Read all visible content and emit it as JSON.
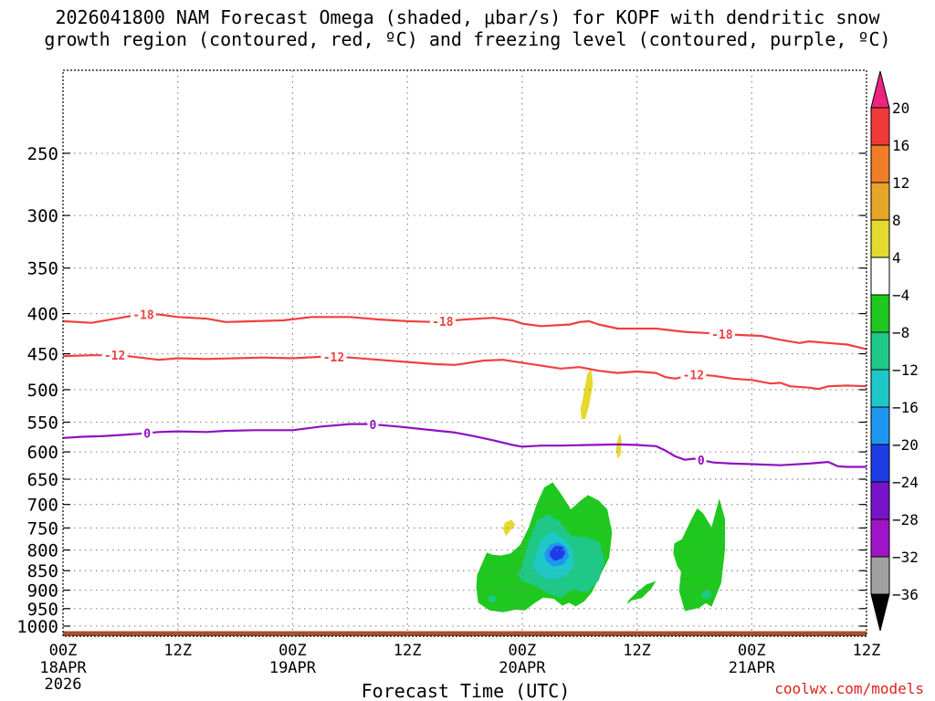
{
  "title": {
    "line1": "2026041800 NAM Forecast Omega (shaded, μbar/s) for KOPF with dendritic snow",
    "line2": "growth region (contoured, red, ºC) and freezing level (contoured, purple, ºC)"
  },
  "credit": "coolwx.com/models",
  "chart_data": {
    "type": "time-height cross section",
    "xlabel": "Forecast Time (UTC)",
    "x_range_hours": [
      0,
      84
    ],
    "x_ticks": [
      {
        "hour": 0,
        "label": "00Z",
        "sub1": "18APR",
        "sub2": "2026"
      },
      {
        "hour": 12,
        "label": "12Z",
        "sub1": "",
        "sub2": ""
      },
      {
        "hour": 24,
        "label": "00Z",
        "sub1": "19APR",
        "sub2": ""
      },
      {
        "hour": 36,
        "label": "12Z",
        "sub1": "",
        "sub2": ""
      },
      {
        "hour": 48,
        "label": "00Z",
        "sub1": "20APR",
        "sub2": ""
      },
      {
        "hour": 60,
        "label": "12Z",
        "sub1": "",
        "sub2": ""
      },
      {
        "hour": 72,
        "label": "00Z",
        "sub1": "21APR",
        "sub2": ""
      },
      {
        "hour": 84,
        "label": "12Z",
        "sub1": "",
        "sub2": ""
      }
    ],
    "y_scale": "log-pressure",
    "y_range_hpa": [
      1030,
      196
    ],
    "y_ticks": [
      250,
      300,
      350,
      400,
      450,
      500,
      550,
      600,
      650,
      700,
      750,
      800,
      850,
      900,
      950,
      1000
    ],
    "grid": true,
    "colorbar": {
      "labels": [
        "20",
        "16",
        "12",
        "8",
        "4",
        "−4",
        "−8",
        "−12",
        "−16",
        "−20",
        "−24",
        "−28",
        "−32",
        "−36"
      ],
      "colors": [
        "#f0247f",
        "#f03a3a",
        "#f07d28",
        "#e6a628",
        "#e4da2e",
        "#ffffff",
        "#1ec81e",
        "#1ec887",
        "#1ec8c8",
        "#1e96f0",
        "#1e3ce6",
        "#7814c8",
        "#a014c8",
        "#a0a0a0",
        "#000000"
      ]
    },
    "contours": [
      {
        "label": "-18",
        "color": "#f04040",
        "label_hours": [
          8.4,
          39.7,
          68.9
        ],
        "points": [
          [
            0,
            409
          ],
          [
            3,
            411
          ],
          [
            6,
            405
          ],
          [
            8,
            401
          ],
          [
            10,
            401
          ],
          [
            12,
            404
          ],
          [
            15,
            406
          ],
          [
            17,
            410
          ],
          [
            20,
            409
          ],
          [
            23,
            408
          ],
          [
            26,
            404
          ],
          [
            30,
            404
          ],
          [
            33,
            407
          ],
          [
            36,
            409
          ],
          [
            39,
            410
          ],
          [
            42,
            407
          ],
          [
            45,
            405
          ],
          [
            47,
            408
          ],
          [
            48,
            412
          ],
          [
            50,
            415
          ],
          [
            53,
            413
          ],
          [
            54,
            410
          ],
          [
            55,
            409
          ],
          [
            56,
            413
          ],
          [
            58,
            418
          ],
          [
            62,
            418
          ],
          [
            65,
            422
          ],
          [
            68,
            424
          ],
          [
            71,
            426
          ],
          [
            73,
            427
          ],
          [
            75,
            432
          ],
          [
            77,
            436
          ],
          [
            78,
            434
          ],
          [
            80,
            436
          ],
          [
            82,
            438
          ],
          [
            84,
            444
          ]
        ]
      },
      {
        "label": "-12",
        "color": "#f04040",
        "label_hours": [
          5.4,
          28.3,
          65.9
        ],
        "points": [
          [
            0,
            453
          ],
          [
            3,
            452
          ],
          [
            6,
            452
          ],
          [
            8,
            455
          ],
          [
            10,
            458
          ],
          [
            12,
            456
          ],
          [
            15,
            457
          ],
          [
            18,
            456
          ],
          [
            21,
            455
          ],
          [
            24,
            456
          ],
          [
            27,
            454
          ],
          [
            30,
            455
          ],
          [
            33,
            458
          ],
          [
            36,
            461
          ],
          [
            39,
            464
          ],
          [
            41,
            465
          ],
          [
            44,
            459
          ],
          [
            46,
            458
          ],
          [
            48,
            462
          ],
          [
            50,
            466
          ],
          [
            52,
            470
          ],
          [
            54,
            468
          ],
          [
            56,
            473
          ],
          [
            58,
            476
          ],
          [
            60,
            474
          ],
          [
            62,
            476
          ],
          [
            63,
            482
          ],
          [
            64,
            484
          ],
          [
            66,
            478
          ],
          [
            68,
            480
          ],
          [
            70,
            484
          ],
          [
            72,
            486
          ],
          [
            74,
            491
          ],
          [
            75,
            490
          ],
          [
            76,
            495
          ],
          [
            78,
            497
          ],
          [
            79,
            499
          ],
          [
            80,
            495
          ],
          [
            82,
            494
          ],
          [
            84,
            495
          ]
        ]
      },
      {
        "label": "0",
        "color": "#9010c0",
        "label_hours": [
          8.8,
          32.4,
          66.7
        ],
        "points": [
          [
            0,
            576
          ],
          [
            2,
            574
          ],
          [
            4,
            573
          ],
          [
            6,
            571
          ],
          [
            8,
            569
          ],
          [
            10,
            566
          ],
          [
            12,
            565
          ],
          [
            15,
            566
          ],
          [
            17,
            564
          ],
          [
            20,
            563
          ],
          [
            24,
            563
          ],
          [
            27,
            557
          ],
          [
            30,
            553
          ],
          [
            32,
            553
          ],
          [
            35,
            557
          ],
          [
            38,
            562
          ],
          [
            41,
            567
          ],
          [
            43,
            573
          ],
          [
            45,
            580
          ],
          [
            47,
            588
          ],
          [
            48,
            591
          ],
          [
            50,
            589
          ],
          [
            52,
            589
          ],
          [
            55,
            588
          ],
          [
            58,
            587
          ],
          [
            60,
            588
          ],
          [
            62,
            590
          ],
          [
            63,
            598
          ],
          [
            64,
            608
          ],
          [
            65,
            614
          ],
          [
            66,
            612
          ],
          [
            68,
            619
          ],
          [
            70,
            621
          ],
          [
            72,
            622
          ],
          [
            75,
            624
          ],
          [
            78,
            621
          ],
          [
            80,
            618
          ],
          [
            81,
            626
          ],
          [
            82,
            627
          ],
          [
            84,
            627
          ]
        ]
      }
    ],
    "shading": [
      {
        "color": "#1ec81e",
        "hours": [
          43.3,
          44.3,
          44.9,
          45.8,
          46.8,
          47.8,
          48.7,
          49.5,
          50.3,
          51.2,
          52.1,
          53.1,
          54.1,
          54.9,
          56.0,
          56.9,
          57.4,
          57.1,
          56.2,
          55.3,
          54.5,
          53.6,
          52.9,
          52.2,
          51.3,
          50.2,
          49.3,
          48.3,
          47.3,
          46.0,
          44.6,
          43.4,
          43.2
        ],
        "pressures": [
          860,
          806,
          811,
          813,
          808,
          788,
          748,
          700,
          666,
          656,
          680,
          710,
          692,
          681,
          692,
          710,
          760,
          818,
          860,
          905,
          930,
          944,
          934,
          942,
          923,
          920,
          935,
          955,
          953,
          960,
          955,
          934,
          892
        ]
      },
      {
        "color": "#1ec887",
        "hours": [
          47.9,
          48.7,
          49.6,
          50.8,
          51.9,
          53.2,
          54.7,
          56.1,
          56.6,
          56.0,
          54.7,
          53.3,
          52.0,
          50.7,
          49.3,
          48.0,
          47.5
        ],
        "pressures": [
          846,
          777,
          733,
          720,
          736,
          768,
          770,
          782,
          828,
          875,
          907,
          898,
          920,
          908,
          888,
          876,
          860
        ]
      },
      {
        "color": "#1ec8c8",
        "hours": [
          49.2,
          50.0,
          51.2,
          52.4,
          53.3,
          53.4,
          52.7,
          51.5,
          50.3,
          49.3
        ],
        "pressures": [
          828,
          776,
          758,
          775,
          800,
          838,
          860,
          872,
          868,
          848
        ]
      },
      {
        "color": "#1e96f0",
        "hours": [
          50.3,
          50.9,
          51.8,
          52.6,
          52.9,
          52.3,
          51.2,
          50.5
        ],
        "pressures": [
          808,
          788,
          782,
          793,
          815,
          835,
          840,
          825
        ]
      },
      {
        "color": "#1e3ce6",
        "hours": [
          50.9,
          51.5,
          52.2,
          52.5,
          52.2,
          51.4,
          50.9
        ],
        "pressures": [
          802,
          790,
          792,
          806,
          820,
          826,
          815
        ]
      },
      {
        "color": "#1ec81e",
        "hours": [
          59.1,
          60.0,
          61.0,
          62.0,
          61.5,
          60.5,
          59.4,
          59.0
        ],
        "pressures": [
          928,
          905,
          885,
          876,
          896,
          921,
          928,
          938
        ]
      },
      {
        "color": "#1ec81e",
        "hours": [
          63.9,
          64.7,
          65.6,
          66.3,
          66.9,
          67.8,
          68.6,
          69.2,
          69.2,
          68.8,
          67.8,
          67.2,
          66.5,
          65.0,
          64.4,
          64.6,
          64.2,
          63.8
        ],
        "pressures": [
          785,
          775,
          735,
          708,
          718,
          748,
          688,
          730,
          800,
          882,
          945,
          935,
          948,
          957,
          902,
          853,
          838,
          808
        ]
      },
      {
        "color": "#1ec887",
        "hours": [
          66.8,
          67.4,
          67.9,
          67.3,
          66.7
        ],
        "pressures": [
          907,
          898,
          912,
          926,
          918
        ]
      },
      {
        "color": "#1ec887",
        "hours": [
          44.3,
          45.1,
          45.4,
          44.8
        ],
        "pressures": [
          918,
          913,
          928,
          935
        ]
      },
      {
        "color": "#e4da2e",
        "hours": [
          54.3,
          54.8,
          55.2,
          55.4,
          55.0,
          54.6,
          54.2,
          54.1
        ],
        "pressures": [
          516,
          478,
          470,
          492,
          524,
          545,
          545,
          528
        ]
      },
      {
        "color": "#e4da2e",
        "hours": [
          57.9,
          58.2,
          58.4,
          58.3,
          58.0,
          57.8
        ],
        "pressures": [
          585,
          567,
          580,
          605,
          612,
          598
        ]
      },
      {
        "color": "#e4da2e",
        "hours": [
          46.2,
          46.9,
          47.3,
          46.8,
          46.3,
          46.0
        ],
        "pressures": [
          738,
          732,
          743,
          755,
          768,
          752
        ]
      }
    ],
    "terrain": {
      "color": "#a0522d",
      "top_hpa": 1015
    }
  }
}
